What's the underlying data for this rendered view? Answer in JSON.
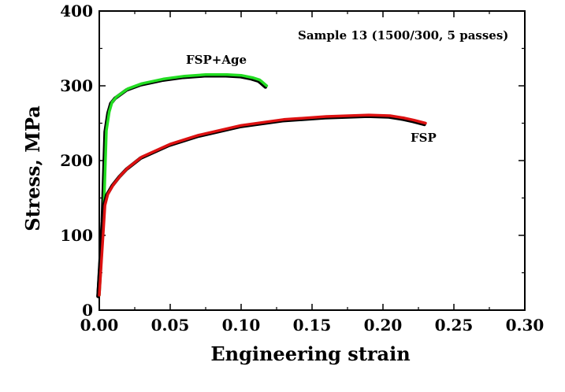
{
  "chart_data": {
    "type": "line",
    "title": "",
    "xlabel": "Engineering strain",
    "ylabel": "Stress, MPa",
    "xlim": [
      0,
      0.3
    ],
    "ylim": [
      0,
      400
    ],
    "x_ticks": [
      0.0,
      0.05,
      0.1,
      0.15,
      0.2,
      0.25,
      0.3
    ],
    "x_tick_labels": [
      "0.00",
      "0.05",
      "0.10",
      "0.15",
      "0.20",
      "0.25",
      "0.30"
    ],
    "y_ticks": [
      0,
      100,
      200,
      300,
      400
    ],
    "y_tick_labels": [
      "0",
      "100",
      "200",
      "300",
      "400"
    ],
    "grid": false,
    "annotation": "Sample 13 (1500/300, 5 passes)",
    "series": [
      {
        "name": "FSP+Age",
        "color": "#22dd22",
        "shadow_color": "#000000",
        "x": [
          0.0,
          0.003,
          0.005,
          0.007,
          0.009,
          0.012,
          0.02,
          0.03,
          0.045,
          0.06,
          0.075,
          0.09,
          0.1,
          0.108,
          0.113,
          0.115,
          0.118
        ],
        "y": [
          20,
          120,
          240,
          265,
          278,
          285,
          296,
          303,
          309,
          313,
          315,
          315,
          314,
          311,
          308,
          305,
          300
        ]
      },
      {
        "name": "FSP",
        "color": "#dd1111",
        "shadow_color": "#000000",
        "x": [
          0.0,
          0.002,
          0.004,
          0.006,
          0.01,
          0.015,
          0.02,
          0.03,
          0.05,
          0.07,
          0.1,
          0.13,
          0.16,
          0.19,
          0.205,
          0.215,
          0.222,
          0.23
        ],
        "y": [
          20,
          80,
          140,
          155,
          168,
          180,
          190,
          205,
          222,
          234,
          247,
          255,
          259,
          261,
          260,
          257,
          254,
          250
        ]
      }
    ]
  }
}
